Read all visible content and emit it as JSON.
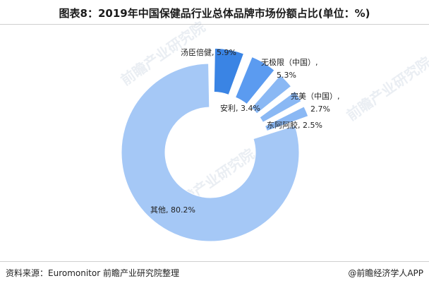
{
  "header": {
    "title": "图表8：2019年中国保健品行业总体品牌市场份额占比(单位：%)"
  },
  "footer": {
    "source": "资料来源：Euromonitor 前瞻产业研究院整理",
    "credit": "@前瞻经济学人APP"
  },
  "watermark": {
    "text": "前瞻产业研究院"
  },
  "colors": {
    "dark_blue": "#3a84e4",
    "mid_blue": "#5b9bf0",
    "light_blue": "#8ab8f4",
    "pale_blue": "#a5c8f6"
  },
  "chart_data": {
    "type": "pie",
    "title": "图表8：2019年中国保健品行业总体品牌市场份额占比(单位：%)",
    "unit": "%",
    "slices": [
      {
        "label": "汤臣倍健",
        "value": 5.9,
        "color": "#3a84e4",
        "display": "汤臣倍健, 5.9%"
      },
      {
        "label": "无极限（中国）",
        "value": 5.3,
        "color": "#5b9bf0",
        "display": "无极限（中国）,5.3%"
      },
      {
        "label": "安利",
        "value": 3.4,
        "color": "#8ab8f4",
        "display": "安利, 3.4%"
      },
      {
        "label": "完美（中国）",
        "value": 2.7,
        "color": "#8ab8f4",
        "display": "完美（中国）,2.7%"
      },
      {
        "label": "东阿阿胶",
        "value": 2.5,
        "color": "#8ab8f4",
        "display": "东阿阿胶, 2.5%"
      },
      {
        "label": "其他",
        "value": 80.2,
        "color": "#a5c8f6",
        "display": "其他, 80.2%"
      }
    ]
  }
}
